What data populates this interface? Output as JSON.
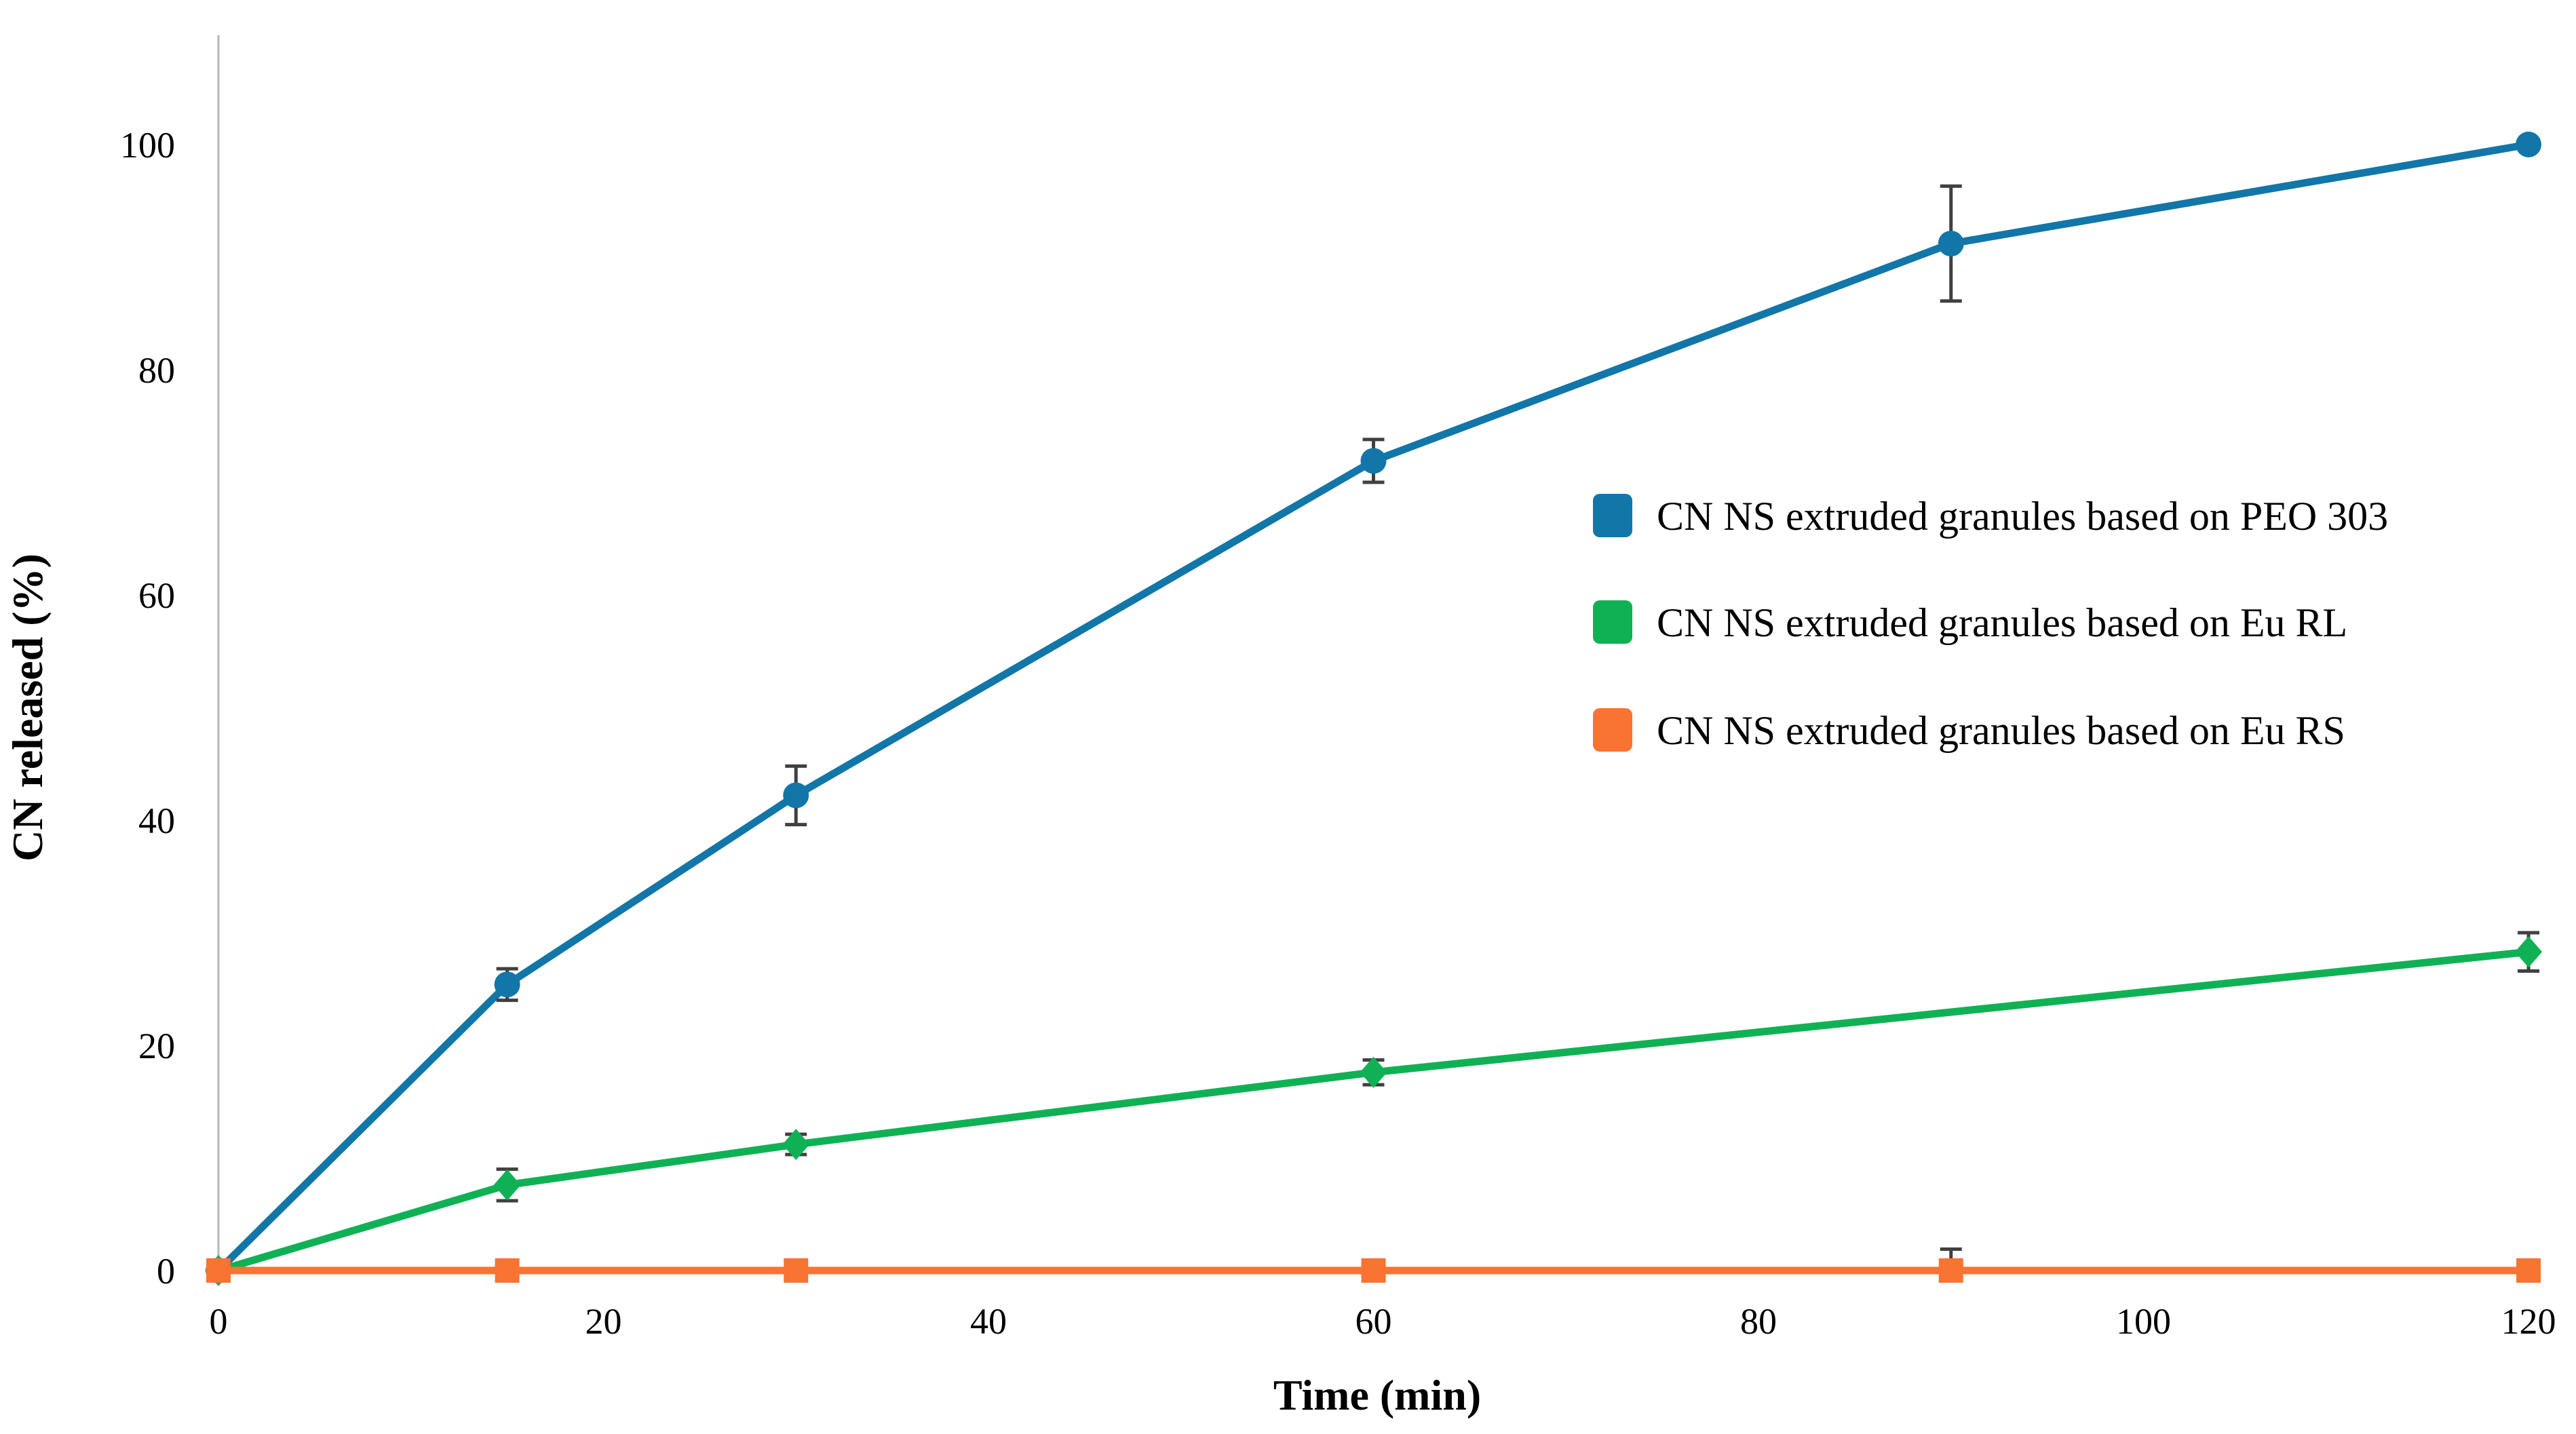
{
  "chart_data": {
    "type": "line",
    "title": "",
    "xlabel": "Time (min)",
    "ylabel": "CN released (%)",
    "x_ticks": [
      0,
      20,
      40,
      60,
      80,
      100,
      120
    ],
    "y_ticks": [
      0,
      20,
      40,
      60,
      80,
      100
    ],
    "xlim": [
      0,
      120
    ],
    "ylim": [
      0,
      110
    ],
    "grid": false,
    "legend_position": "center-right",
    "background_color": "#ffffff",
    "axis_line_color": "#b7b7b7",
    "error_bar_color": "#404040",
    "series": [
      {
        "name": "CN NS extruded granules based on PEO 303",
        "color": "#1276a8",
        "marker": "circle",
        "error_direction": "both",
        "points": [
          {
            "t": 0,
            "v": 0,
            "err": 0
          },
          {
            "t": 15,
            "v": 25.4,
            "err": 1.4
          },
          {
            "t": 30,
            "v": 42.2,
            "err": 2.6
          },
          {
            "t": 60,
            "v": 71.9,
            "err": 1.9
          },
          {
            "t": 90,
            "v": 91.2,
            "err": 5.1
          },
          {
            "t": 120,
            "v": 100,
            "err": 0
          }
        ]
      },
      {
        "name": "CN NS extruded granules based on Eu RL",
        "color": "#10b155",
        "marker": "diamond",
        "error_direction": "both",
        "points": [
          {
            "t": 0,
            "v": 0,
            "err": 0
          },
          {
            "t": 15,
            "v": 7.6,
            "err": 1.4
          },
          {
            "t": 30,
            "v": 11.2,
            "err": 0.9
          },
          {
            "t": 60,
            "v": 17.6,
            "err": 1.1
          },
          {
            "t": 120,
            "v": 28.3,
            "err": 1.7
          }
        ]
      },
      {
        "name": "CN NS extruded granules based on Eu RS",
        "color": "#f97332",
        "marker": "square",
        "error_direction": "plus",
        "points": [
          {
            "t": 0,
            "v": 0,
            "err": 0
          },
          {
            "t": 15,
            "v": 0,
            "err": 0.7
          },
          {
            "t": 30,
            "v": 0,
            "err": 0.5
          },
          {
            "t": 60,
            "v": 0,
            "err": 0.7
          },
          {
            "t": 90,
            "v": 0,
            "err": 1.9
          },
          {
            "t": 120,
            "v": 0,
            "err": 0.9
          }
        ]
      }
    ]
  }
}
